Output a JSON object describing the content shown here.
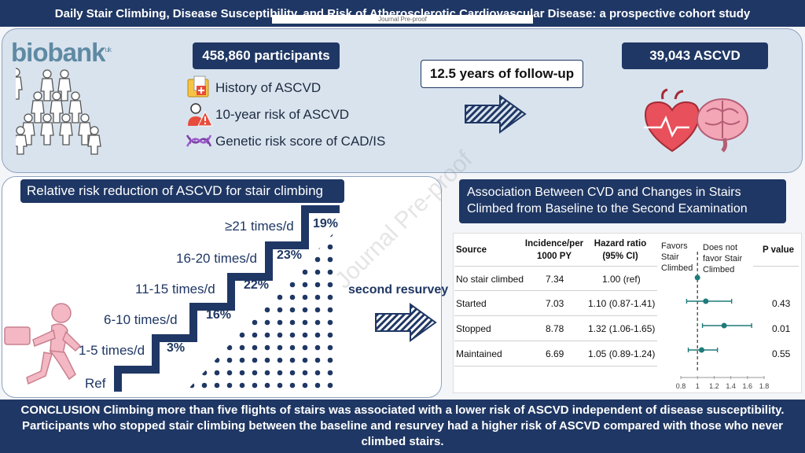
{
  "title": "Daily Stair Climbing, Disease Susceptibility, and Risk of Atherosclerotic Cardiovascular Disease: a prospective cohort study",
  "journal_tag": "Journal Pre-proof",
  "watermark": "Journal Pre-proof",
  "logo": {
    "text": "biobank",
    "sup": "uk"
  },
  "participants": "458,860 participants",
  "followup": "12.5 years of follow-up",
  "outcome": "39,043 ASCVD",
  "exposures": [
    "History of ASCVD",
    "10-year risk of ASCVD",
    "Genetic risk score of CAD/IS"
  ],
  "icons": {
    "people": "people-icon",
    "history": "folder-plus-icon",
    "risk": "person-warning-icon",
    "dna": "dna-icon",
    "arrow": "striped-arrow-icon",
    "organs": "heart-brain-icon",
    "climber": "stair-climber-icon"
  },
  "rrr": {
    "title": "Relative risk reduction of ASCVD for stair climbing",
    "steps": [
      {
        "label": "Ref",
        "pct": ""
      },
      {
        "label": "1-5 times/d",
        "pct": "3%"
      },
      {
        "label": "6-10 times/d",
        "pct": "16%"
      },
      {
        "label": "11-15 times/d",
        "pct": "22%"
      },
      {
        "label": "16-20 times/d",
        "pct": "23%"
      },
      {
        "label": "≥21 times/d",
        "pct": "19%"
      }
    ]
  },
  "resurvey_label": "second resurvey",
  "assoc": {
    "title_line1": "Association Between CVD and Changes in Stairs",
    "title_line2": "Climbed from Baseline to the Second Examination"
  },
  "table": {
    "headers": {
      "source": "Source",
      "inc1": "Incidence/per",
      "inc2": "1000 PY",
      "hr1": "Hazard ratio",
      "hr2": "(95% CI)",
      "pval": "P value"
    },
    "favors_l1": "Favors",
    "favors_l2": "Stair",
    "favors_l3": "Climbed",
    "notfav_l1": "Does  not",
    "notfav_l2": "favor Stair",
    "notfav_l3": "Climbed",
    "rows": [
      {
        "source": "No stair climbed",
        "incidence": "7.34",
        "hr": "1.00 (ref)",
        "p": ""
      },
      {
        "source": "Started",
        "incidence": "7.03",
        "hr": "1.10 (0.87-1.41)",
        "p": "0.43"
      },
      {
        "source": "Stopped",
        "incidence": "8.78",
        "hr": "1.32 (1.06-1.65)",
        "p": "0.01"
      },
      {
        "source": "Maintained",
        "incidence": "6.69",
        "hr": "1.05 (0.89-1.24)",
        "p": "0.55"
      }
    ],
    "axis_ticks": [
      "0.8",
      "1",
      "1.2",
      "1.4",
      "1.6",
      "1.8"
    ]
  },
  "chart_data": {
    "type": "scatter",
    "categories": [
      "No stair climbed",
      "Started",
      "Stopped",
      "Maintained"
    ],
    "hr": [
      1.0,
      1.1,
      1.32,
      1.05
    ],
    "ci_low": [
      1.0,
      0.87,
      1.06,
      0.89
    ],
    "ci_high": [
      1.0,
      1.41,
      1.65,
      1.24
    ],
    "xlim": [
      0.8,
      1.8
    ],
    "reference_line": 1,
    "title": "",
    "xlabel": "",
    "ylabel": ""
  },
  "conclusion": "CONCLUSION Climbing more than five flights of stairs was associated with a lower risk of ASCVD  independent of disease susceptibility. Participants who stopped stair climbing between the baseline and resurvey had a higher risk of ASCVD compared with those who never climbed stairs.",
  "colors": {
    "navy": "#1f3764",
    "panel": "#d9e3ee",
    "forest": "#1f7a7a",
    "pink": "#f3b8c4"
  }
}
